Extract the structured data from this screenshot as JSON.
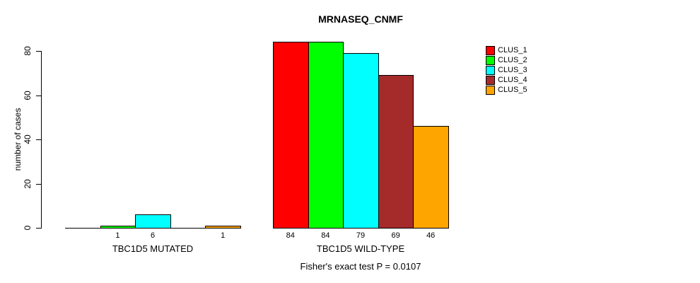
{
  "chart_data": {
    "type": "bar",
    "title": "MRNASEQ_CNMF",
    "xlabel": "",
    "ylabel": "number of cases",
    "ylim": [
      0,
      84
    ],
    "yticks": [
      0,
      20,
      40,
      60,
      80
    ],
    "grid": false,
    "legend_position": "topright",
    "categories": [
      "TBC1D5 MUTATED",
      "TBC1D5 WILD-TYPE"
    ],
    "series": [
      {
        "name": "CLUS_1",
        "color": "#FF0000",
        "values": [
          0,
          84
        ]
      },
      {
        "name": "CLUS_2",
        "color": "#00FF00",
        "values": [
          1,
          84
        ]
      },
      {
        "name": "CLUS_3",
        "color": "#00FFFF",
        "values": [
          6,
          79
        ]
      },
      {
        "name": "CLUS_4",
        "color": "#A52A2A",
        "values": [
          0,
          69
        ]
      },
      {
        "name": "CLUS_5",
        "color": "#FFA500",
        "values": [
          1,
          46
        ]
      }
    ],
    "bar_value_labels_shown": true,
    "zero_value_labels_omitted": true,
    "annotation": "Fisher's exact test P = 0.0107",
    "colors": {
      "axis": "#000000",
      "bar_border": "#000000",
      "background": "#FFFFFF"
    }
  }
}
